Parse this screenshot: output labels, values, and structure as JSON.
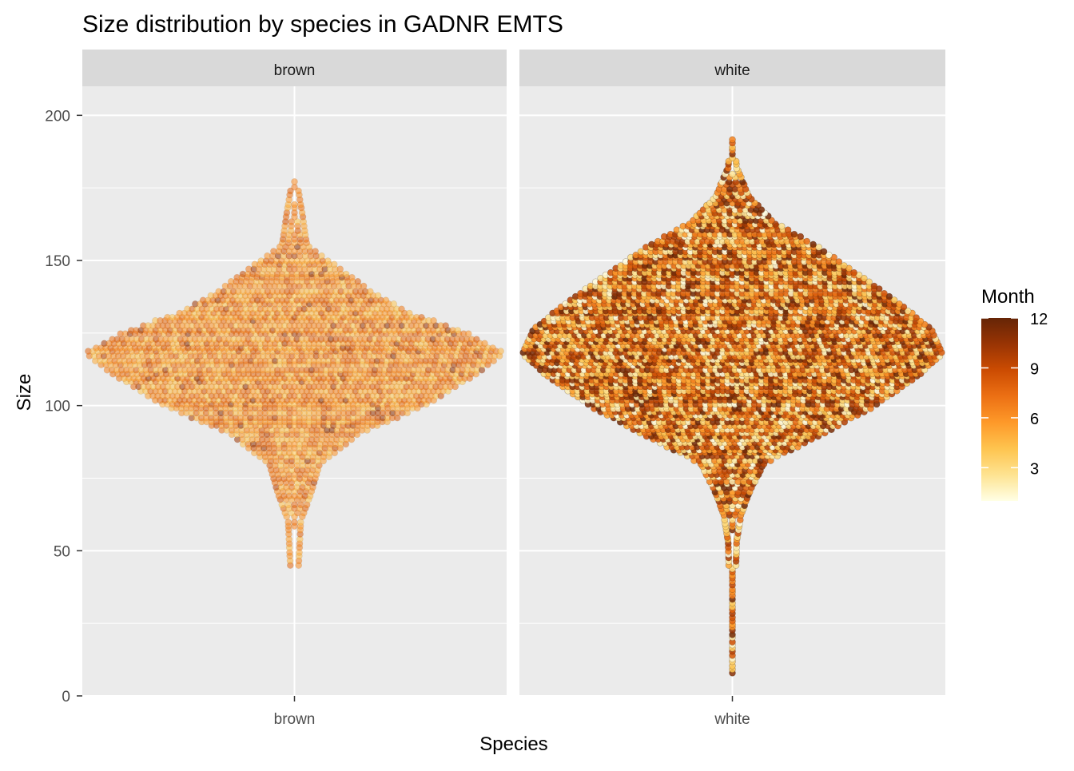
{
  "chart_data": {
    "type": "scatter",
    "subtype": "beeswarm",
    "title": "Size distribution by species in GADNR EMTS",
    "xlabel": "Species",
    "ylabel": "Size",
    "ylim": [
      0,
      210
    ],
    "y_ticks": [
      0,
      50,
      100,
      150,
      200
    ],
    "grid": true,
    "panels": [
      {
        "strip_label": "brown",
        "x_tick_label": "brown",
        "dominant_month_range": [
          4,
          8
        ],
        "size_profile": [
          {
            "size": 45,
            "half_width": 0.02
          },
          {
            "size": 60,
            "half_width": 0.03
          },
          {
            "size": 70,
            "half_width": 0.08
          },
          {
            "size": 80,
            "half_width": 0.12
          },
          {
            "size": 90,
            "half_width": 0.3
          },
          {
            "size": 100,
            "half_width": 0.62
          },
          {
            "size": 110,
            "half_width": 0.85
          },
          {
            "size": 118,
            "half_width": 1.0
          },
          {
            "size": 125,
            "half_width": 0.82
          },
          {
            "size": 132,
            "half_width": 0.55
          },
          {
            "size": 140,
            "half_width": 0.35
          },
          {
            "size": 148,
            "half_width": 0.2
          },
          {
            "size": 155,
            "half_width": 0.06
          },
          {
            "size": 165,
            "half_width": 0.04
          },
          {
            "size": 178,
            "half_width": 0.01
          }
        ]
      },
      {
        "strip_label": "white",
        "x_tick_label": "white",
        "dominant_month_range": [
          1,
          12
        ],
        "size_profile": [
          {
            "size": 8,
            "half_width": 0.01
          },
          {
            "size": 13,
            "half_width": 0.01
          },
          {
            "size": 25,
            "half_width": 0.01
          },
          {
            "size": 53,
            "half_width": 0.02
          },
          {
            "size": 62,
            "half_width": 0.04
          },
          {
            "size": 70,
            "half_width": 0.08
          },
          {
            "size": 80,
            "half_width": 0.15
          },
          {
            "size": 90,
            "half_width": 0.42
          },
          {
            "size": 100,
            "half_width": 0.68
          },
          {
            "size": 110,
            "half_width": 0.88
          },
          {
            "size": 118,
            "half_width": 1.0
          },
          {
            "size": 126,
            "half_width": 0.95
          },
          {
            "size": 135,
            "half_width": 0.8
          },
          {
            "size": 145,
            "half_width": 0.6
          },
          {
            "size": 155,
            "half_width": 0.4
          },
          {
            "size": 163,
            "half_width": 0.2
          },
          {
            "size": 172,
            "half_width": 0.08
          },
          {
            "size": 182,
            "half_width": 0.02
          },
          {
            "size": 192,
            "half_width": 0.01
          }
        ]
      }
    ],
    "legend": {
      "title": "Month",
      "type": "colorbar",
      "placement": "right",
      "range": [
        1,
        12
      ],
      "ticks": [
        3,
        6,
        9,
        12
      ],
      "palette": [
        "#FFFFE5",
        "#FEE391",
        "#FEC44F",
        "#FE9929",
        "#EC7014",
        "#CC4C02",
        "#993404",
        "#662506"
      ]
    },
    "colors": {
      "panel_background": "#EBEBEB",
      "grid": "#FFFFFF",
      "strip_background": "#D9D9D9",
      "axis_text": "#4D4D4D",
      "title": "#000000"
    }
  }
}
